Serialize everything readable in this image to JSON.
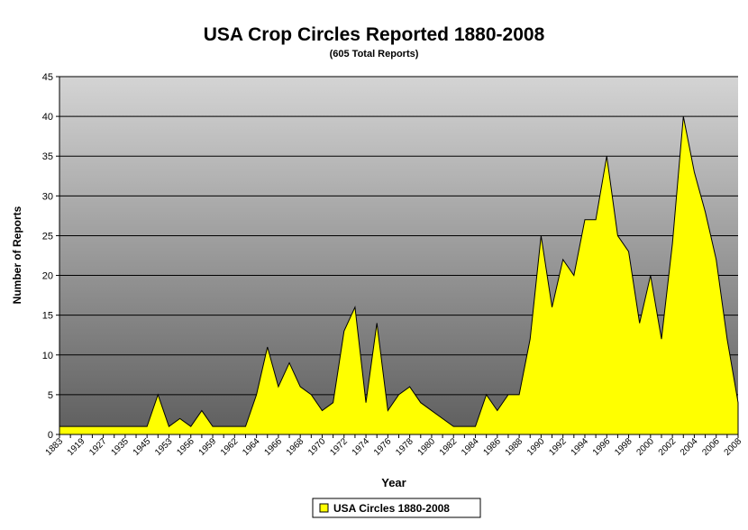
{
  "chart_data": {
    "type": "area",
    "title": "USA Crop Circles Reported 1880-2008",
    "subtitle": "(605 Total Reports)",
    "x_label": "Year",
    "y_label": "Number of Reports",
    "categories": [
      "1883",
      null,
      "1919",
      null,
      "1927",
      null,
      "1935",
      null,
      "1945",
      null,
      "1953",
      null,
      "1956",
      null,
      "1959",
      null,
      "1962",
      null,
      "1964",
      null,
      "1966",
      null,
      "1968",
      null,
      "1970",
      null,
      "1972",
      null,
      "1974",
      null,
      "1976",
      null,
      "1978",
      null,
      "1980",
      null,
      "1982",
      null,
      "1984",
      null,
      "1986",
      null,
      "1988",
      null,
      "1990",
      null,
      "1992",
      null,
      "1994",
      null,
      "1996",
      null,
      "1998",
      null,
      "2000",
      null,
      "2002",
      null,
      "2004",
      null,
      "2006",
      null,
      "2008"
    ],
    "series": [
      {
        "name": "USA Circles 1880-2008",
        "color": "#ffff00",
        "values": [
          1,
          1,
          1,
          1,
          1,
          1,
          1,
          1,
          1,
          5,
          1,
          2,
          1,
          3,
          1,
          1,
          1,
          1,
          5,
          11,
          6,
          9,
          6,
          5,
          3,
          4,
          13,
          16,
          4,
          14,
          3,
          5,
          6,
          4,
          3,
          2,
          1,
          1,
          1,
          5,
          3,
          5,
          5,
          12,
          25,
          16,
          22,
          20,
          27,
          27,
          35,
          25,
          23,
          14,
          20,
          12,
          24,
          40,
          33,
          28,
          22,
          12,
          4
        ]
      }
    ],
    "ylim": [
      0,
      45
    ],
    "yticks": [
      0,
      5,
      10,
      15,
      20,
      25,
      30,
      35,
      40,
      45
    ],
    "grid": true,
    "legend": "bottom"
  }
}
